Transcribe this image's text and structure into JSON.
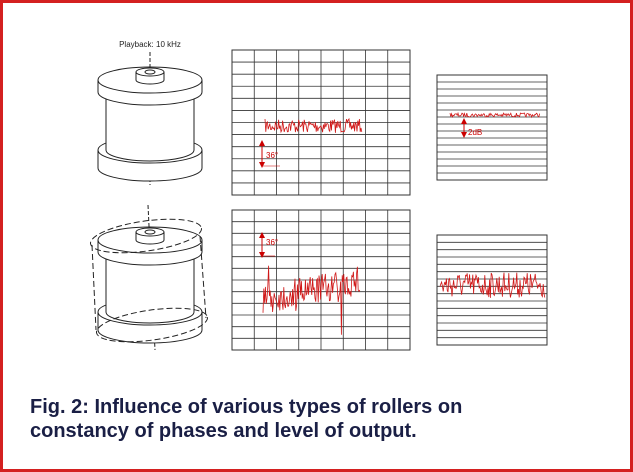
{
  "header": {
    "playback_label": "Playback: 10 kHz"
  },
  "figures": [
    {
      "phase_label": "36°",
      "level_label": "2dB"
    },
    {
      "phase_label": "36°"
    }
  ],
  "caption": {
    "lines": [
      "Fig. 2: Influence of various types of rollers on",
      "constancy of phases and level of output."
    ]
  }
}
